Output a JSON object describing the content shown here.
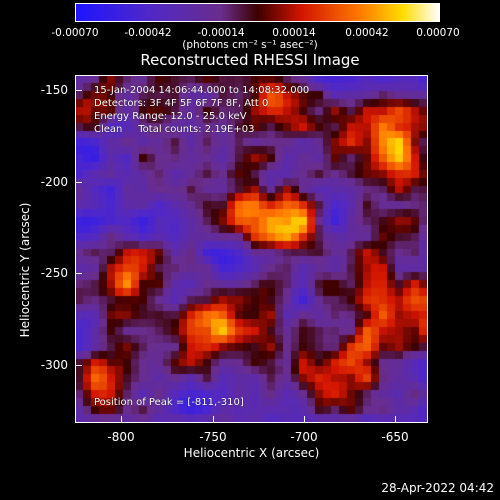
{
  "colorbar": {
    "ticks": [
      "-0.00070",
      "-0.00042",
      "-0.00014",
      "0.00014",
      "0.00042",
      "0.00070"
    ],
    "units": "(photons cm⁻² s⁻¹ asec⁻²)"
  },
  "title": "Reconstructed RHESSI Image",
  "info": {
    "line1": "15-Jan-2004 14:06:44.000 to 14:08:32.000",
    "line2": "Detectors: 3F 4F 5F 6F 7F 8F, Att 0",
    "line3": "Energy Range: 12.0 - 25.0 keV",
    "line4": "Clean     Total counts: 2.19E+03",
    "peak": "Position of Peak = [-811,-310]"
  },
  "axes": {
    "xlabel": "Heliocentric X (arcsec)",
    "ylabel": "Heliocentric Y (arcsec)",
    "xticks": [
      "-800",
      "-750",
      "-700",
      "-650"
    ],
    "yticks": [
      "-150",
      "-200",
      "-250",
      "-300"
    ]
  },
  "footer": {
    "date": "28-Apr-2022 04:42"
  }
}
